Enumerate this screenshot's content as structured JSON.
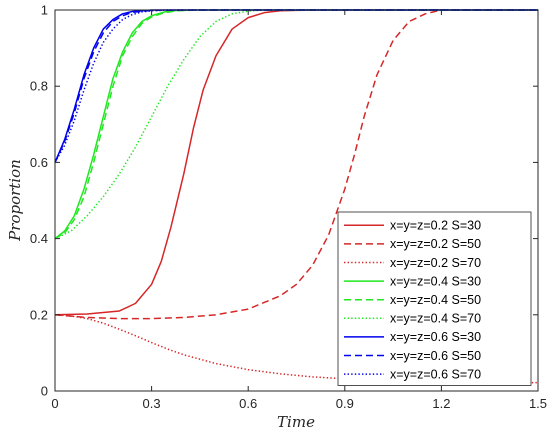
{
  "chart_data": {
    "type": "line",
    "title": "",
    "xlabel": "Time",
    "ylabel": "Proportion",
    "xlim": [
      0,
      1.5
    ],
    "ylim": [
      0,
      1
    ],
    "xticks": [
      "0",
      "0.3",
      "0.6",
      "0.9",
      "1.2",
      "1.5"
    ],
    "yticks": [
      "0",
      "0.2",
      "0.4",
      "0.6",
      "0.8",
      "1"
    ],
    "grid": false,
    "legend_position": "lower-right",
    "series": [
      {
        "name": "x=y=z=0.2 S=30",
        "color": "#d62728",
        "style": "solid",
        "x": [
          0,
          0.1,
          0.2,
          0.25,
          0.3,
          0.33,
          0.36,
          0.4,
          0.43,
          0.46,
          0.5,
          0.55,
          0.6,
          0.65,
          0.7,
          0.8,
          1.0,
          1.5
        ],
        "y": [
          0.2,
          0.202,
          0.21,
          0.23,
          0.28,
          0.34,
          0.43,
          0.57,
          0.69,
          0.79,
          0.88,
          0.95,
          0.98,
          0.993,
          0.998,
          1.0,
          1.0,
          1.0
        ]
      },
      {
        "name": "x=y=z=0.2 S=50",
        "color": "#d62728",
        "style": "dashed",
        "x": [
          0,
          0.1,
          0.2,
          0.3,
          0.4,
          0.5,
          0.6,
          0.7,
          0.75,
          0.8,
          0.85,
          0.9,
          0.93,
          0.96,
          1.0,
          1.05,
          1.1,
          1.15,
          1.2,
          1.3,
          1.5
        ],
        "y": [
          0.2,
          0.193,
          0.19,
          0.19,
          0.193,
          0.2,
          0.215,
          0.25,
          0.28,
          0.33,
          0.41,
          0.53,
          0.62,
          0.72,
          0.83,
          0.92,
          0.97,
          0.99,
          1.0,
          1.0,
          1.0
        ]
      },
      {
        "name": "x=y=z=0.2 S=70",
        "color": "#d62728",
        "style": "dotted",
        "x": [
          0,
          0.05,
          0.1,
          0.15,
          0.2,
          0.25,
          0.3,
          0.35,
          0.4,
          0.5,
          0.6,
          0.7,
          0.8,
          0.9,
          1.0,
          1.1,
          1.2,
          1.3,
          1.4,
          1.5
        ],
        "y": [
          0.2,
          0.197,
          0.19,
          0.178,
          0.162,
          0.145,
          0.127,
          0.11,
          0.095,
          0.072,
          0.056,
          0.045,
          0.037,
          0.032,
          0.028,
          0.026,
          0.024,
          0.023,
          0.022,
          0.022
        ]
      },
      {
        "name": "x=y=z=0.4 S=30",
        "color": "#1fe81f",
        "style": "solid",
        "x": [
          0,
          0.03,
          0.06,
          0.09,
          0.12,
          0.15,
          0.18,
          0.21,
          0.24,
          0.27,
          0.3,
          0.34,
          0.38,
          0.45,
          0.6,
          1.5
        ],
        "y": [
          0.4,
          0.42,
          0.46,
          0.53,
          0.62,
          0.72,
          0.82,
          0.89,
          0.94,
          0.97,
          0.985,
          0.995,
          0.999,
          1.0,
          1.0,
          1.0
        ]
      },
      {
        "name": "x=y=z=0.4 S=50",
        "color": "#1fe81f",
        "style": "dashed",
        "x": [
          0,
          0.03,
          0.06,
          0.09,
          0.12,
          0.15,
          0.18,
          0.21,
          0.24,
          0.27,
          0.3,
          0.34,
          0.38,
          0.45,
          0.6,
          1.5
        ],
        "y": [
          0.4,
          0.415,
          0.45,
          0.51,
          0.6,
          0.7,
          0.8,
          0.88,
          0.93,
          0.965,
          0.982,
          0.993,
          0.998,
          1.0,
          1.0,
          1.0
        ]
      },
      {
        "name": "x=y=z=0.4 S=70",
        "color": "#1fe81f",
        "style": "dotted",
        "x": [
          0,
          0.05,
          0.1,
          0.15,
          0.2,
          0.25,
          0.3,
          0.35,
          0.4,
          0.45,
          0.5,
          0.55,
          0.6,
          0.65,
          0.7,
          0.8,
          1.5
        ],
        "y": [
          0.4,
          0.42,
          0.46,
          0.51,
          0.57,
          0.64,
          0.72,
          0.8,
          0.87,
          0.93,
          0.97,
          0.99,
          0.997,
          1.0,
          1.0,
          1.0,
          1.0
        ]
      },
      {
        "name": "x=y=z=0.6 S=30",
        "color": "#0000ee",
        "style": "solid",
        "x": [
          0,
          0.03,
          0.06,
          0.09,
          0.12,
          0.15,
          0.18,
          0.21,
          0.24,
          0.3,
          0.4,
          1.5
        ],
        "y": [
          0.6,
          0.66,
          0.74,
          0.83,
          0.9,
          0.95,
          0.975,
          0.99,
          0.996,
          1.0,
          1.0,
          1.0
        ]
      },
      {
        "name": "x=y=z=0.6 S=50",
        "color": "#0000ee",
        "style": "dashed",
        "x": [
          0,
          0.03,
          0.06,
          0.09,
          0.12,
          0.15,
          0.18,
          0.21,
          0.24,
          0.3,
          0.4,
          1.5
        ],
        "y": [
          0.6,
          0.655,
          0.73,
          0.82,
          0.89,
          0.94,
          0.97,
          0.985,
          0.994,
          0.999,
          1.0,
          1.0
        ]
      },
      {
        "name": "x=y=z=0.6 S=70",
        "color": "#0000ee",
        "style": "dotted",
        "x": [
          0,
          0.03,
          0.06,
          0.09,
          0.12,
          0.15,
          0.18,
          0.21,
          0.24,
          0.27,
          0.3,
          0.35,
          0.45,
          1.5
        ],
        "y": [
          0.6,
          0.645,
          0.71,
          0.79,
          0.86,
          0.915,
          0.95,
          0.975,
          0.988,
          0.995,
          0.998,
          1.0,
          1.0,
          1.0
        ]
      }
    ]
  }
}
